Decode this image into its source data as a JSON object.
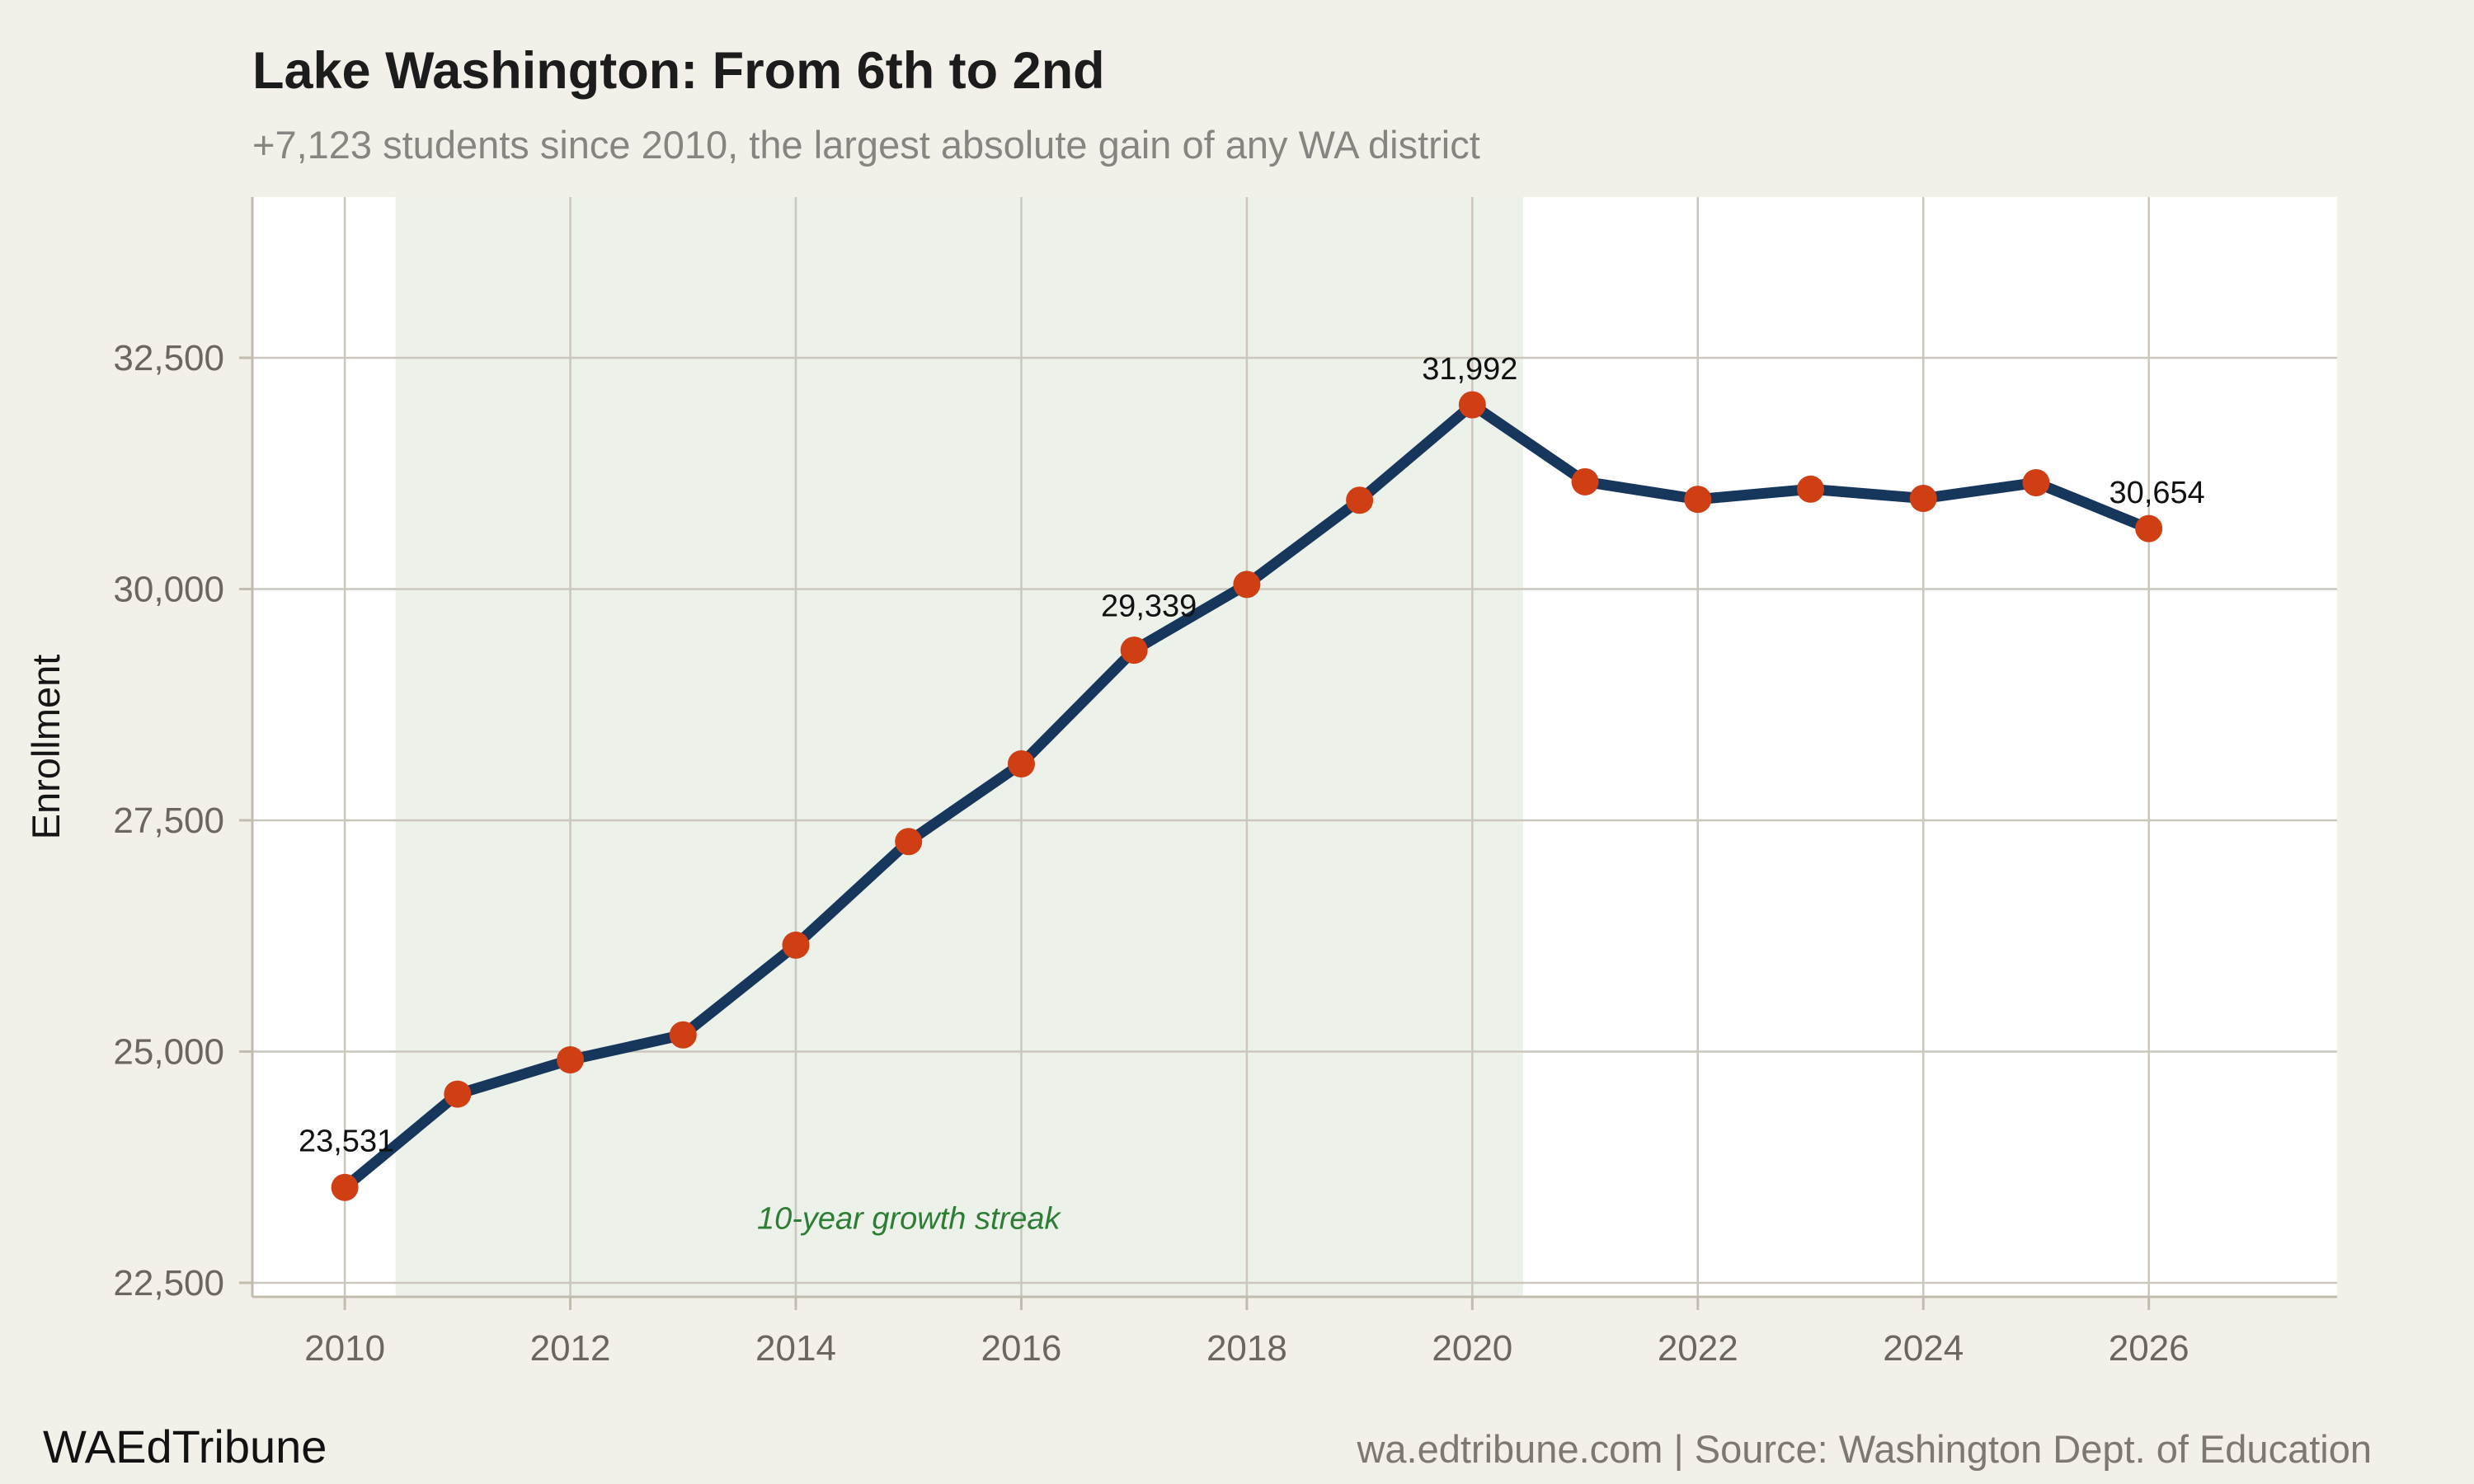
{
  "header": {
    "title": "Lake Washington: From 6th to 2nd",
    "subtitle": "+7,123 students since 2010, the largest absolute gain of any WA district"
  },
  "footer": {
    "brand": "WAEdTribune",
    "source": "wa.edtribune.com | Source: Washington Dept. of Education"
  },
  "colors": {
    "page_bg": "#f3f0e9",
    "plot_bg": "#ffffff",
    "band_bg": "#ecf1ea",
    "grid": "#ccc7bd",
    "axis": "#c2bbaf",
    "tick_label": "#6b675f",
    "line": "#16365c",
    "marker": "#d03e14",
    "annotation": "#2d7d35",
    "title": "#1c1c1c",
    "subtitle": "#878581",
    "footer_source": "#7d7870",
    "data_label": "#111111"
  },
  "chart_data": {
    "type": "line",
    "title": "Lake Washington: From 6th to 2nd",
    "subtitle": "+7,123 students since 2010, the largest absolute gain of any WA district",
    "xlabel": "",
    "ylabel": "Enrollment",
    "x": [
      2010,
      2011,
      2012,
      2013,
      2014,
      2015,
      2016,
      2017,
      2018,
      2019,
      2020,
      2021,
      2022,
      2023,
      2024,
      2025,
      2026
    ],
    "values": [
      23531,
      24540,
      24910,
      25180,
      26150,
      27270,
      28110,
      29339,
      30050,
      30960,
      31992,
      31160,
      30970,
      31080,
      30980,
      31150,
      30654
    ],
    "xticks": [
      2010,
      2012,
      2014,
      2016,
      2018,
      2020,
      2022,
      2024,
      2026
    ],
    "yticks": [
      22500,
      25000,
      27500,
      30000,
      32500
    ],
    "ytick_labels": [
      "22,500",
      "25,000",
      "27,500",
      "30,000",
      "32,500"
    ],
    "xlim": [
      2009.18,
      2027.67
    ],
    "ylim": [
      22348,
      34238
    ],
    "grid": true,
    "legend": "none",
    "band": {
      "x0": 2010.45,
      "x1": 2020.45
    },
    "annotation": {
      "text": "10-year growth streak",
      "x": 2015,
      "y": 23200
    },
    "point_labels": [
      {
        "x": 2010,
        "label": "23,531"
      },
      {
        "x": 2017,
        "label": "29,339"
      },
      {
        "x": 2020,
        "label": "31,992"
      },
      {
        "x": 2026,
        "label": "30,654"
      }
    ]
  }
}
